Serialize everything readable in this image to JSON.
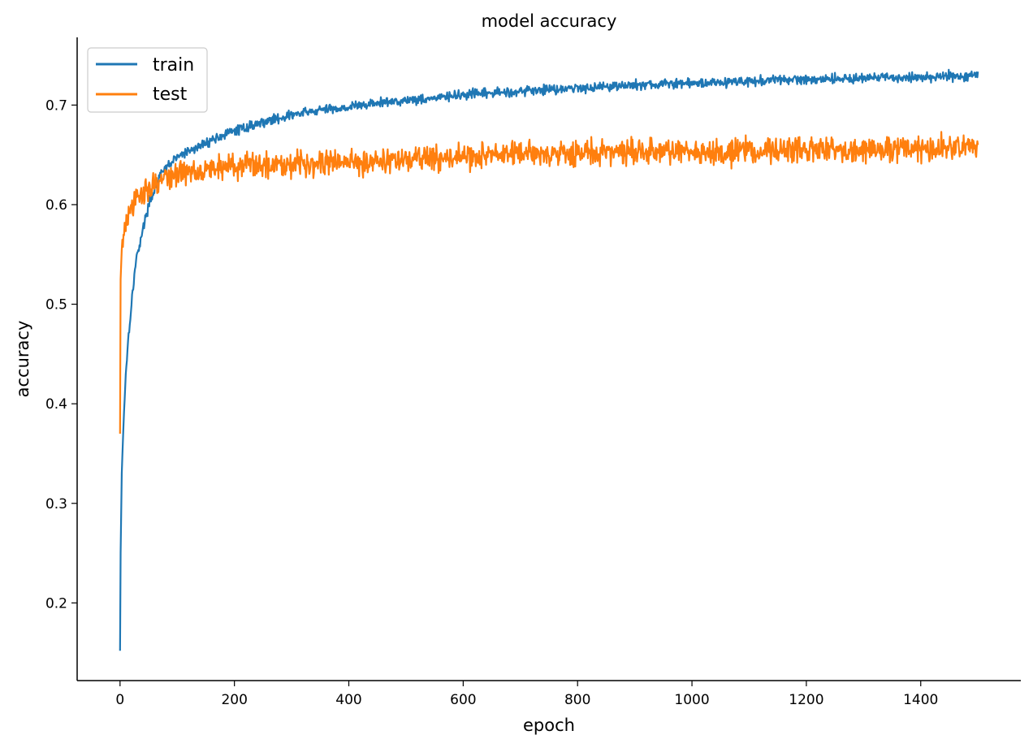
{
  "chart_data": {
    "type": "line",
    "title": "model accuracy",
    "xlabel": "epoch",
    "ylabel": "accuracy",
    "xlim": [
      -75,
      1575
    ],
    "ylim": [
      0.122,
      0.768
    ],
    "xticks": [
      0,
      200,
      400,
      600,
      800,
      1000,
      1200,
      1400
    ],
    "yticks": [
      0.2,
      0.3,
      0.4,
      0.5,
      0.6,
      0.7
    ],
    "x_range": [
      0,
      1500
    ],
    "grid": false,
    "legend_position": "upper-left",
    "series": [
      {
        "name": "train",
        "color": "#1f77b4",
        "noise": 0.003,
        "points": [
          [
            0,
            0.152
          ],
          [
            1,
            0.25
          ],
          [
            3,
            0.33
          ],
          [
            6,
            0.38
          ],
          [
            10,
            0.43
          ],
          [
            15,
            0.47
          ],
          [
            20,
            0.5
          ],
          [
            25,
            0.53
          ],
          [
            30,
            0.55
          ],
          [
            40,
            0.575
          ],
          [
            50,
            0.6
          ],
          [
            60,
            0.615
          ],
          [
            70,
            0.628
          ],
          [
            80,
            0.637
          ],
          [
            100,
            0.648
          ],
          [
            130,
            0.656
          ],
          [
            160,
            0.665
          ],
          [
            200,
            0.674
          ],
          [
            250,
            0.683
          ],
          [
            300,
            0.69
          ],
          [
            350,
            0.695
          ],
          [
            400,
            0.698
          ],
          [
            450,
            0.702
          ],
          [
            500,
            0.705
          ],
          [
            550,
            0.707
          ],
          [
            600,
            0.71
          ],
          [
            650,
            0.712
          ],
          [
            700,
            0.714
          ],
          [
            750,
            0.716
          ],
          [
            800,
            0.717
          ],
          [
            850,
            0.719
          ],
          [
            900,
            0.72
          ],
          [
            950,
            0.721
          ],
          [
            1000,
            0.722
          ],
          [
            1100,
            0.724
          ],
          [
            1200,
            0.726
          ],
          [
            1300,
            0.727
          ],
          [
            1400,
            0.728
          ],
          [
            1500,
            0.73
          ]
        ]
      },
      {
        "name": "test",
        "color": "#ff7f0e",
        "noise": 0.008,
        "points": [
          [
            0,
            0.37
          ],
          [
            1,
            0.525
          ],
          [
            3,
            0.555
          ],
          [
            6,
            0.57
          ],
          [
            10,
            0.58
          ],
          [
            20,
            0.595
          ],
          [
            30,
            0.605
          ],
          [
            40,
            0.612
          ],
          [
            50,
            0.618
          ],
          [
            70,
            0.624
          ],
          [
            100,
            0.631
          ],
          [
            150,
            0.636
          ],
          [
            200,
            0.639
          ],
          [
            300,
            0.642
          ],
          [
            400,
            0.643
          ],
          [
            500,
            0.645
          ],
          [
            600,
            0.648
          ],
          [
            700,
            0.651
          ],
          [
            800,
            0.652
          ],
          [
            900,
            0.653
          ],
          [
            1000,
            0.653
          ],
          [
            1100,
            0.654
          ],
          [
            1200,
            0.655
          ],
          [
            1300,
            0.655
          ],
          [
            1400,
            0.656
          ],
          [
            1500,
            0.657
          ]
        ]
      }
    ]
  }
}
